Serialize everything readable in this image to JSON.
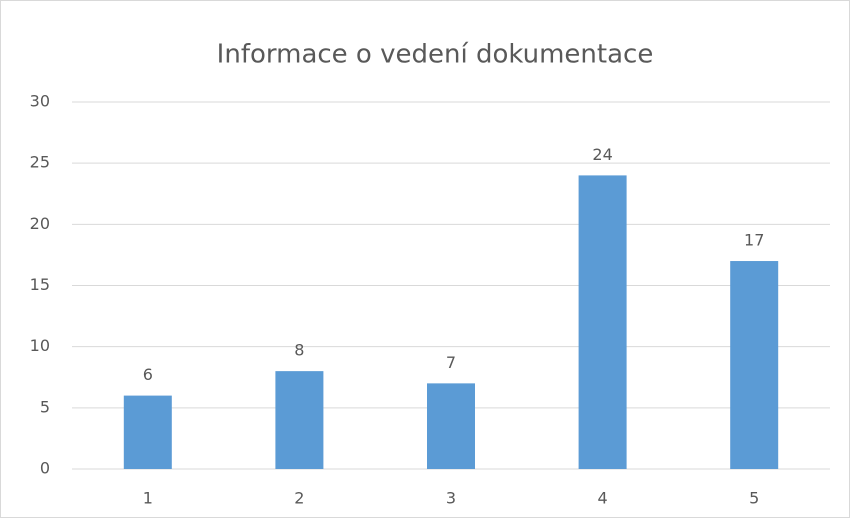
{
  "chart_data": {
    "type": "bar",
    "title": "Informace o vedení dokumentace",
    "categories": [
      "1",
      "2",
      "3",
      "4",
      "5"
    ],
    "values": [
      6,
      8,
      7,
      24,
      17
    ],
    "color": "#5b9bd5",
    "ylim": [
      0,
      30
    ],
    "yticks": [
      0,
      5,
      10,
      15,
      20,
      25,
      30
    ],
    "grid": true,
    "data_labels": true
  }
}
